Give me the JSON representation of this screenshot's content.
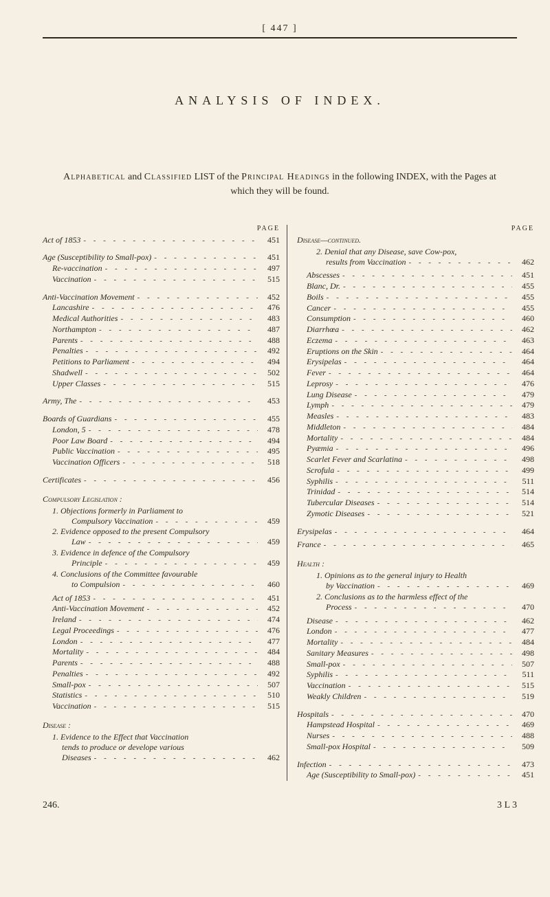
{
  "pageNumberTop": "[ 447 ]",
  "title": "ANALYSIS OF INDEX.",
  "intro": {
    "prefix": "Alphabetical",
    "mid1": " and ",
    "sc1": "Classified",
    "mid2": " LIST of the ",
    "sc2": "Principal Headings",
    "suffix": " in the following INDEX, with the Pages at which they will be found."
  },
  "pageLabel": "PAGE",
  "left": [
    {
      "kind": "entry",
      "indent": 0,
      "term": "Act of 1853",
      "page": "451",
      "italic": true
    },
    {
      "kind": "gap"
    },
    {
      "kind": "entry",
      "indent": 0,
      "term": "Age (Susceptibility to Small-pox)",
      "page": "451",
      "italic": true
    },
    {
      "kind": "entry",
      "indent": 1,
      "term": "Re-vaccination",
      "page": "497",
      "italic": true
    },
    {
      "kind": "entry",
      "indent": 1,
      "term": "Vaccination",
      "page": "515",
      "italic": true
    },
    {
      "kind": "gap"
    },
    {
      "kind": "entry",
      "indent": 0,
      "term": "Anti-Vaccination Movement",
      "page": "452",
      "italic": true
    },
    {
      "kind": "entry",
      "indent": 1,
      "term": "Lancashire",
      "page": "476",
      "italic": true
    },
    {
      "kind": "entry",
      "indent": 1,
      "term": "Medical Authorities",
      "page": "483",
      "italic": true
    },
    {
      "kind": "entry",
      "indent": 1,
      "term": "Northampton",
      "page": "487",
      "italic": true
    },
    {
      "kind": "entry",
      "indent": 1,
      "term": "Parents",
      "page": "488",
      "italic": true
    },
    {
      "kind": "entry",
      "indent": 1,
      "term": "Penalties",
      "page": "492",
      "italic": true
    },
    {
      "kind": "entry",
      "indent": 1,
      "term": "Petitions to Parliament",
      "page": "494",
      "italic": true
    },
    {
      "kind": "entry",
      "indent": 1,
      "term": "Shadwell",
      "page": "502",
      "italic": true
    },
    {
      "kind": "entry",
      "indent": 1,
      "term": "Upper Classes",
      "page": "515",
      "italic": true
    },
    {
      "kind": "gap"
    },
    {
      "kind": "entry",
      "indent": 0,
      "term": "Army, The",
      "page": "453",
      "italic": true
    },
    {
      "kind": "gap"
    },
    {
      "kind": "entry",
      "indent": 0,
      "term": "Boards of Guardians",
      "page": "455",
      "italic": true
    },
    {
      "kind": "entry",
      "indent": 1,
      "term": "London, 5",
      "page": "478",
      "italic": true
    },
    {
      "kind": "entry",
      "indent": 1,
      "term": "Poor Law Board",
      "page": "494",
      "italic": true
    },
    {
      "kind": "entry",
      "indent": 1,
      "term": "Public Vaccination",
      "page": "495",
      "italic": true
    },
    {
      "kind": "entry",
      "indent": 1,
      "term": "Vaccination Officers",
      "page": "518",
      "italic": true
    },
    {
      "kind": "gap"
    },
    {
      "kind": "entry",
      "indent": 0,
      "term": "Certificates",
      "page": "456",
      "italic": true
    },
    {
      "kind": "gap"
    },
    {
      "kind": "heading",
      "indent": 0,
      "term": "Compulsory Legislation :",
      "sc": true
    },
    {
      "kind": "text",
      "indent": 1,
      "term": "1. Objections formerly in Parliament to",
      "italic": true
    },
    {
      "kind": "entry",
      "indent": 3,
      "term": "Compulsory Vaccination",
      "page": "459",
      "italic": true
    },
    {
      "kind": "text",
      "indent": 1,
      "term": "2. Evidence opposed to the present Compulsory",
      "italic": true
    },
    {
      "kind": "entry",
      "indent": 3,
      "term": "Law",
      "page": "459",
      "italic": true
    },
    {
      "kind": "text",
      "indent": 1,
      "term": "3. Evidence in defence of the Compulsory",
      "italic": true
    },
    {
      "kind": "entry",
      "indent": 3,
      "term": "Principle",
      "page": "459",
      "italic": true
    },
    {
      "kind": "text",
      "indent": 1,
      "term": "4. Conclusions of the Committee favourable",
      "italic": true
    },
    {
      "kind": "entry",
      "indent": 3,
      "term": "to Compulsion",
      "page": "460",
      "italic": true
    },
    {
      "kind": "gap-s"
    },
    {
      "kind": "entry",
      "indent": 1,
      "term": "Act of 1853",
      "page": "451",
      "italic": true
    },
    {
      "kind": "entry",
      "indent": 1,
      "term": "Anti-Vaccination Movement",
      "page": "452",
      "italic": true
    },
    {
      "kind": "entry",
      "indent": 1,
      "term": "Ireland",
      "page": "474",
      "italic": true
    },
    {
      "kind": "entry",
      "indent": 1,
      "term": "Legal Proceedings",
      "page": "476",
      "italic": true
    },
    {
      "kind": "entry",
      "indent": 1,
      "term": "London",
      "page": "477",
      "italic": true
    },
    {
      "kind": "entry",
      "indent": 1,
      "term": "Mortality",
      "page": "484",
      "italic": true
    },
    {
      "kind": "entry",
      "indent": 1,
      "term": "Parents",
      "page": "488",
      "italic": true
    },
    {
      "kind": "entry",
      "indent": 1,
      "term": "Penalties",
      "page": "492",
      "italic": true
    },
    {
      "kind": "entry",
      "indent": 1,
      "term": "Small-pox",
      "page": "507",
      "italic": true
    },
    {
      "kind": "entry",
      "indent": 1,
      "term": "Statistics",
      "page": "510",
      "italic": true
    },
    {
      "kind": "entry",
      "indent": 1,
      "term": "Vaccination",
      "page": "515",
      "italic": true
    },
    {
      "kind": "gap"
    },
    {
      "kind": "heading",
      "indent": 0,
      "term": "Disease :",
      "sc": true
    },
    {
      "kind": "text",
      "indent": 1,
      "term": "1. Evidence to the Effect that Vaccination",
      "italic": true
    },
    {
      "kind": "text",
      "indent": 2,
      "term": "tends to produce or develope various",
      "italic": true
    },
    {
      "kind": "entry",
      "indent": 2,
      "term": "Diseases",
      "page": "462",
      "italic": true
    }
  ],
  "right": [
    {
      "kind": "heading",
      "indent": 0,
      "term": "Disease—continued.",
      "sc": true
    },
    {
      "kind": "text",
      "indent": 2,
      "term": "2. Denial that any Disease, save Cow-pox,",
      "italic": true
    },
    {
      "kind": "entry",
      "indent": 3,
      "term": "results from Vaccination",
      "page": "462",
      "italic": true
    },
    {
      "kind": "gap-s"
    },
    {
      "kind": "entry",
      "indent": 1,
      "term": "Abscesses",
      "page": "451",
      "italic": true
    },
    {
      "kind": "entry",
      "indent": 1,
      "term": "Blanc, Dr.",
      "page": "455",
      "italic": true
    },
    {
      "kind": "entry",
      "indent": 1,
      "term": "Boils",
      "page": "455",
      "italic": true
    },
    {
      "kind": "entry",
      "indent": 1,
      "term": "Cancer",
      "page": "455",
      "italic": true
    },
    {
      "kind": "entry",
      "indent": 1,
      "term": "Consumption",
      "page": "460",
      "italic": true
    },
    {
      "kind": "entry",
      "indent": 1,
      "term": "Diarrhœa",
      "page": "462",
      "italic": true
    },
    {
      "kind": "entry",
      "indent": 1,
      "term": "Eczema",
      "page": "463",
      "italic": true
    },
    {
      "kind": "entry",
      "indent": 1,
      "term": "Eruptions on the Skin",
      "page": "464",
      "italic": true
    },
    {
      "kind": "entry",
      "indent": 1,
      "term": "Erysipelas",
      "page": "464",
      "italic": true
    },
    {
      "kind": "entry",
      "indent": 1,
      "term": "Fever",
      "page": "464",
      "italic": true
    },
    {
      "kind": "entry",
      "indent": 1,
      "term": "Leprosy",
      "page": "476",
      "italic": true
    },
    {
      "kind": "entry",
      "indent": 1,
      "term": "Lung Disease",
      "page": "479",
      "italic": true
    },
    {
      "kind": "entry",
      "indent": 1,
      "term": "Lymph",
      "page": "479",
      "italic": true
    },
    {
      "kind": "entry",
      "indent": 1,
      "term": "Measles",
      "page": "483",
      "italic": true
    },
    {
      "kind": "entry",
      "indent": 1,
      "term": "Middleton",
      "page": "484",
      "italic": true
    },
    {
      "kind": "entry",
      "indent": 1,
      "term": "Mortality",
      "page": "484",
      "italic": true
    },
    {
      "kind": "entry",
      "indent": 1,
      "term": "Pyæmia",
      "page": "496",
      "italic": true
    },
    {
      "kind": "entry",
      "indent": 1,
      "term": "Scarlet Fever and Scarlatina",
      "page": "498",
      "italic": true
    },
    {
      "kind": "entry",
      "indent": 1,
      "term": "Scrofula",
      "page": "499",
      "italic": true
    },
    {
      "kind": "entry",
      "indent": 1,
      "term": "Syphilis",
      "page": "511",
      "italic": true
    },
    {
      "kind": "entry",
      "indent": 1,
      "term": "Trinidad",
      "page": "514",
      "italic": true
    },
    {
      "kind": "entry",
      "indent": 1,
      "term": "Tubercular Diseases",
      "page": "514",
      "italic": true
    },
    {
      "kind": "entry",
      "indent": 1,
      "term": "Zymotic Diseases",
      "page": "521",
      "italic": true
    },
    {
      "kind": "gap"
    },
    {
      "kind": "entry",
      "indent": 0,
      "term": "Erysipelas",
      "page": "464",
      "italic": true
    },
    {
      "kind": "gap-s"
    },
    {
      "kind": "entry",
      "indent": 0,
      "term": "France",
      "page": "465",
      "italic": true
    },
    {
      "kind": "gap"
    },
    {
      "kind": "heading",
      "indent": 0,
      "term": "Health :",
      "sc": true
    },
    {
      "kind": "text",
      "indent": 2,
      "term": "1. Opinions as to the general injury to Health",
      "italic": true
    },
    {
      "kind": "entry",
      "indent": 3,
      "term": "by Vaccination",
      "page": "469",
      "italic": true
    },
    {
      "kind": "text",
      "indent": 2,
      "term": "2. Conclusions as to the harmless effect of the",
      "italic": true
    },
    {
      "kind": "entry",
      "indent": 3,
      "term": "Process",
      "page": "470",
      "italic": true
    },
    {
      "kind": "gap-s"
    },
    {
      "kind": "entry",
      "indent": 1,
      "term": "Disease",
      "page": "462",
      "italic": true
    },
    {
      "kind": "entry",
      "indent": 1,
      "term": "London",
      "page": "477",
      "italic": true
    },
    {
      "kind": "entry",
      "indent": 1,
      "term": "Mortality",
      "page": "484",
      "italic": true
    },
    {
      "kind": "entry",
      "indent": 1,
      "term": "Sanitary Measures",
      "page": "498",
      "italic": true
    },
    {
      "kind": "entry",
      "indent": 1,
      "term": "Small-pox",
      "page": "507",
      "italic": true
    },
    {
      "kind": "entry",
      "indent": 1,
      "term": "Syphilis",
      "page": "511",
      "italic": true
    },
    {
      "kind": "entry",
      "indent": 1,
      "term": "Vaccination",
      "page": "515",
      "italic": true
    },
    {
      "kind": "entry",
      "indent": 1,
      "term": "Weakly Children",
      "page": "519",
      "italic": true
    },
    {
      "kind": "gap"
    },
    {
      "kind": "entry",
      "indent": 0,
      "term": "Hospitals",
      "page": "470",
      "italic": true
    },
    {
      "kind": "entry",
      "indent": 1,
      "term": "Hampstead Hospital",
      "page": "469",
      "italic": true
    },
    {
      "kind": "entry",
      "indent": 1,
      "term": "Nurses",
      "page": "488",
      "italic": true
    },
    {
      "kind": "entry",
      "indent": 1,
      "term": "Small-pox Hospital",
      "page": "509",
      "italic": true
    },
    {
      "kind": "gap"
    },
    {
      "kind": "entry",
      "indent": 0,
      "term": "Infection",
      "page": "473",
      "italic": true
    },
    {
      "kind": "entry",
      "indent": 1,
      "term": "Age (Susceptibility to Small-pox)",
      "page": "451",
      "italic": true
    }
  ],
  "footer": {
    "left": "246.",
    "right": "3 L 3"
  }
}
